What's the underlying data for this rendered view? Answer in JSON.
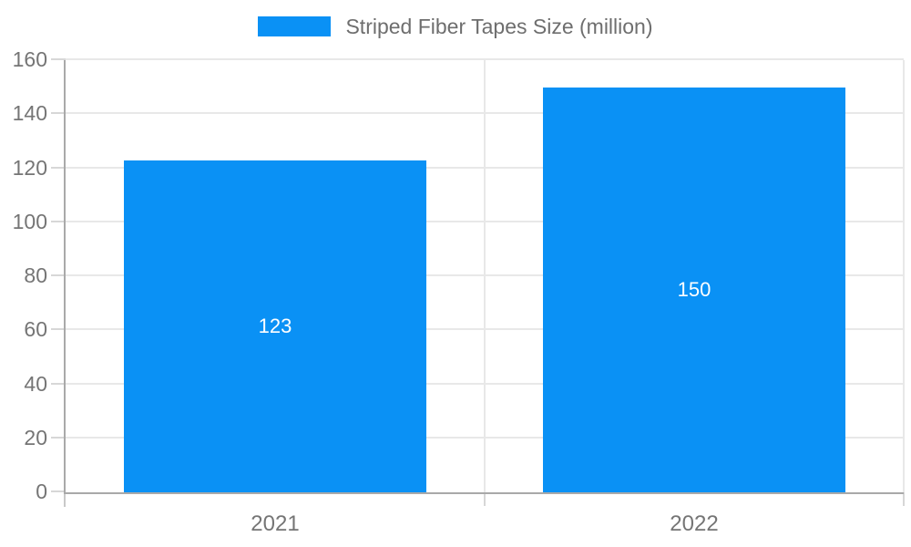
{
  "chart": {
    "legend": {
      "label": "Striped Fiber Tapes Size (million)",
      "position": "top-center"
    },
    "colors": {
      "bar": "#0a91f5",
      "axis": "#a9a9a9",
      "grid": "#e8e8e8",
      "tick": "#d7d7d7",
      "axis_tick_below": "#c9c9c9",
      "tick_label": "#757575",
      "legend_text": "#6e6e6e",
      "bar_label": "#ffffff",
      "background": "#ffffff"
    }
  },
  "chart_data": {
    "type": "bar",
    "categories": [
      "2021",
      "2022"
    ],
    "series": [
      {
        "name": "Striped Fiber Tapes Size (million)",
        "values": [
          123,
          150
        ],
        "color": "#0a91f5"
      }
    ],
    "data_labels": [
      "123",
      "150"
    ],
    "title": "",
    "xlabel": "",
    "ylabel": "",
    "ylim": [
      0,
      160
    ],
    "ytick_step": 20,
    "yticks": [
      0,
      20,
      40,
      60,
      80,
      100,
      120,
      140,
      160
    ],
    "grid": true,
    "legend_position": "top-center",
    "bar_width_fraction": 0.72
  }
}
